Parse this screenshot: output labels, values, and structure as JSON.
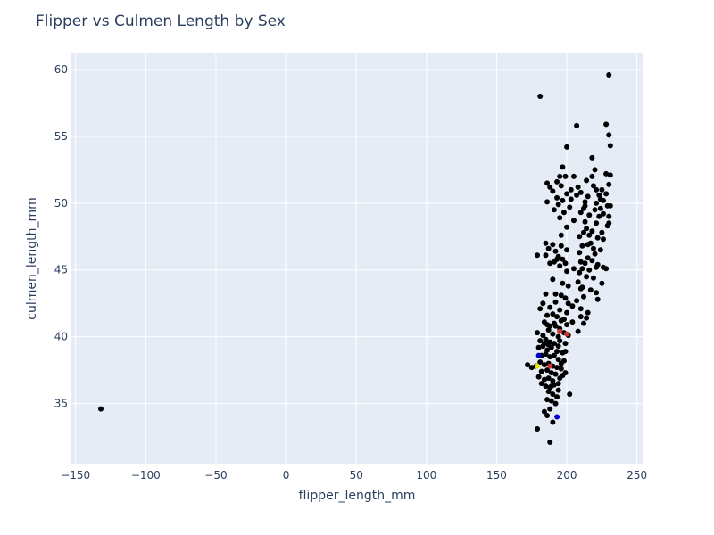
{
  "chart_data": {
    "type": "scatter",
    "title": "Flipper vs Culmen Length by Sex",
    "xlabel": "flipper_length_mm",
    "ylabel": "culmen_length_mm",
    "xlim": [
      -153,
      254
    ],
    "ylim": [
      30.5,
      61.2
    ],
    "x_ticks": [
      -150,
      -100,
      -50,
      0,
      50,
      100,
      150,
      200,
      250
    ],
    "x_tick_labels": [
      "−150",
      "−100",
      "−50",
      "0",
      "50",
      "100",
      "150",
      "200",
      "250"
    ],
    "y_ticks": [
      35,
      40,
      45,
      50,
      55,
      60
    ],
    "y_tick_labels": [
      "35",
      "40",
      "45",
      "50",
      "55",
      "60"
    ],
    "grid": true,
    "legend": "none",
    "colors": {
      "plot_bg": "#e5ecf6",
      "grid": "#ffffff",
      "text": "#2a3f5f",
      "marker": "#000000",
      "marker_blue": "#0000cc",
      "marker_red": "#cc3333",
      "marker_yellow": "#e6e600"
    },
    "series": [
      {
        "color": "#000000",
        "points": [
          [
            -132,
            34.6
          ],
          [
            181,
            58.0
          ],
          [
            230,
            59.6
          ],
          [
            207,
            55.8
          ],
          [
            228,
            55.9
          ],
          [
            230,
            55.1
          ],
          [
            231,
            54.3
          ],
          [
            200,
            54.2
          ],
          [
            218,
            53.4
          ],
          [
            220,
            52.5
          ],
          [
            197,
            52.7
          ],
          [
            228,
            52.2
          ],
          [
            231,
            52.1
          ],
          [
            195,
            52.0
          ],
          [
            199,
            52.0
          ],
          [
            205,
            52.0
          ],
          [
            214,
            51.7
          ],
          [
            193,
            51.6
          ],
          [
            208,
            51.2
          ],
          [
            219,
            51.3
          ],
          [
            186,
            51.5
          ],
          [
            188,
            51.2
          ],
          [
            196,
            51.3
          ],
          [
            221,
            51.0
          ],
          [
            225,
            51.0
          ],
          [
            230,
            51.4
          ],
          [
            190,
            50.9
          ],
          [
            200,
            50.7
          ],
          [
            210,
            50.8
          ],
          [
            215,
            50.5
          ],
          [
            223,
            50.6
          ],
          [
            226,
            50.2
          ],
          [
            228,
            50.7
          ],
          [
            193,
            50.4
          ],
          [
            197,
            50.2
          ],
          [
            203,
            50.3
          ],
          [
            213,
            50.1
          ],
          [
            221,
            50.0
          ],
          [
            186,
            50.1
          ],
          [
            229,
            49.8
          ],
          [
            194,
            49.9
          ],
          [
            202,
            49.7
          ],
          [
            212,
            49.6
          ],
          [
            220,
            49.5
          ],
          [
            224,
            49.6
          ],
          [
            231,
            49.8
          ],
          [
            191,
            49.5
          ],
          [
            198,
            49.3
          ],
          [
            210,
            49.3
          ],
          [
            216,
            49.1
          ],
          [
            223,
            49.0
          ],
          [
            226,
            49.2
          ],
          [
            230,
            49.0
          ],
          [
            195,
            48.9
          ],
          [
            205,
            48.7
          ],
          [
            213,
            48.6
          ],
          [
            221,
            48.5
          ],
          [
            229,
            48.3
          ],
          [
            200,
            48.2
          ],
          [
            214,
            48.1
          ],
          [
            218,
            47.9
          ],
          [
            225,
            47.8
          ],
          [
            230,
            48.5
          ],
          [
            185,
            47.0
          ],
          [
            190,
            46.9
          ],
          [
            196,
            46.8
          ],
          [
            209,
            47.5
          ],
          [
            216,
            47.6
          ],
          [
            222,
            47.4
          ],
          [
            226,
            47.3
          ],
          [
            187,
            46.6
          ],
          [
            192,
            46.4
          ],
          [
            200,
            46.5
          ],
          [
            211,
            46.8
          ],
          [
            215,
            46.9
          ],
          [
            219,
            46.6
          ],
          [
            224,
            46.5
          ],
          [
            179,
            46.1
          ],
          [
            185,
            46.1
          ],
          [
            193,
            45.8
          ],
          [
            197,
            45.8
          ],
          [
            210,
            45.6
          ],
          [
            213,
            45.5
          ],
          [
            218,
            45.7
          ],
          [
            222,
            45.4
          ],
          [
            226,
            45.2
          ],
          [
            188,
            45.5
          ],
          [
            191,
            45.6
          ],
          [
            195,
            45.3
          ],
          [
            211,
            45.1
          ],
          [
            216,
            45.0
          ],
          [
            221,
            45.2
          ],
          [
            228,
            45.1
          ],
          [
            200,
            44.9
          ],
          [
            209,
            44.8
          ],
          [
            214,
            44.5
          ],
          [
            219,
            44.4
          ],
          [
            225,
            44.0
          ],
          [
            190,
            44.3
          ],
          [
            197,
            44.0
          ],
          [
            210,
            43.6
          ],
          [
            217,
            43.5
          ],
          [
            221,
            43.3
          ],
          [
            222,
            42.8
          ],
          [
            185,
            43.2
          ],
          [
            192,
            43.2
          ],
          [
            196,
            43.1
          ],
          [
            212,
            43.0
          ],
          [
            201,
            42.5
          ],
          [
            207,
            42.7
          ],
          [
            183,
            42.5
          ],
          [
            188,
            42.2
          ],
          [
            195,
            42.0
          ],
          [
            210,
            42.1
          ],
          [
            215,
            41.8
          ],
          [
            181,
            42.1
          ],
          [
            186,
            41.6
          ],
          [
            190,
            41.7
          ],
          [
            193,
            41.5
          ],
          [
            198,
            41.3
          ],
          [
            204,
            41.1
          ],
          [
            212,
            41.0
          ],
          [
            184,
            41.1
          ],
          [
            188,
            40.8
          ],
          [
            191,
            41.0
          ],
          [
            195,
            40.6
          ],
          [
            200,
            40.9
          ],
          [
            208,
            40.4
          ],
          [
            179,
            40.3
          ],
          [
            183,
            40.1
          ],
          [
            187,
            40.5
          ],
          [
            190,
            40.2
          ],
          [
            194,
            40.0
          ],
          [
            198,
            40.3
          ],
          [
            201,
            40.1
          ],
          [
            181,
            39.7
          ],
          [
            185,
            39.8
          ],
          [
            188,
            39.6
          ],
          [
            191,
            39.5
          ],
          [
            195,
            39.7
          ],
          [
            199,
            39.5
          ],
          [
            180,
            39.2
          ],
          [
            183,
            39.3
          ],
          [
            186,
            39.0
          ],
          [
            189,
            39.2
          ],
          [
            193,
            38.9
          ],
          [
            197,
            38.8
          ],
          [
            182,
            38.6
          ],
          [
            185,
            38.7
          ],
          [
            188,
            38.5
          ],
          [
            191,
            38.6
          ],
          [
            194,
            38.3
          ],
          [
            198,
            38.2
          ],
          [
            181,
            38.1
          ],
          [
            184,
            37.9
          ],
          [
            187,
            38.0
          ],
          [
            190,
            37.8
          ],
          [
            193,
            37.7
          ],
          [
            196,
            37.6
          ],
          [
            172,
            37.9
          ],
          [
            175,
            37.7
          ],
          [
            178,
            37.8
          ],
          [
            182,
            37.4
          ],
          [
            186,
            37.5
          ],
          [
            189,
            37.3
          ],
          [
            192,
            37.2
          ],
          [
            197,
            37.1
          ],
          [
            180,
            37.0
          ],
          [
            184,
            36.8
          ],
          [
            187,
            36.9
          ],
          [
            190,
            36.7
          ],
          [
            194,
            36.5
          ],
          [
            182,
            36.5
          ],
          [
            185,
            36.3
          ],
          [
            188,
            36.2
          ],
          [
            191,
            36.4
          ],
          [
            194,
            36.0
          ],
          [
            187,
            35.9
          ],
          [
            190,
            35.7
          ],
          [
            193,
            35.5
          ],
          [
            202,
            35.7
          ],
          [
            186,
            35.3
          ],
          [
            189,
            35.2
          ],
          [
            192,
            35.0
          ],
          [
            184,
            34.4
          ],
          [
            188,
            34.6
          ],
          [
            186,
            34.1
          ],
          [
            190,
            33.6
          ],
          [
            179,
            33.1
          ],
          [
            188,
            32.1
          ],
          [
            217,
            47.0
          ],
          [
            220,
            46.2
          ],
          [
            213,
            49.8
          ],
          [
            207,
            50.6
          ],
          [
            218,
            52.0
          ],
          [
            203,
            51.0
          ],
          [
            224,
            50.3
          ],
          [
            196,
            47.6
          ],
          [
            212,
            47.8
          ],
          [
            209,
            46.3
          ],
          [
            215,
            45.9
          ],
          [
            199,
            45.5
          ],
          [
            205,
            45.1
          ],
          [
            194,
            46.0
          ],
          [
            201,
            43.8
          ],
          [
            208,
            44.1
          ],
          [
            211,
            43.7
          ],
          [
            192,
            42.6
          ],
          [
            199,
            42.9
          ],
          [
            204,
            42.3
          ],
          [
            210,
            41.5
          ],
          [
            214,
            41.4
          ],
          [
            200,
            41.8
          ],
          [
            196,
            41.2
          ],
          [
            192,
            40.8
          ],
          [
            186,
            40.9
          ],
          [
            194,
            39.3
          ],
          [
            199,
            38.9
          ],
          [
            184,
            39.5
          ],
          [
            187,
            39.4
          ],
          [
            196,
            38.0
          ],
          [
            199,
            37.3
          ],
          [
            189,
            36.3
          ],
          [
            195,
            36.9
          ]
        ]
      },
      {
        "color": "#0000cc",
        "points": [
          [
            193,
            34.0
          ],
          [
            180,
            38.6
          ]
        ]
      },
      {
        "color": "#cc3333",
        "points": [
          [
            200,
            40.2
          ],
          [
            195,
            40.4
          ],
          [
            188,
            37.8
          ]
        ]
      },
      {
        "color": "#e6e600",
        "points": [
          [
            179,
            37.8
          ]
        ]
      }
    ]
  }
}
